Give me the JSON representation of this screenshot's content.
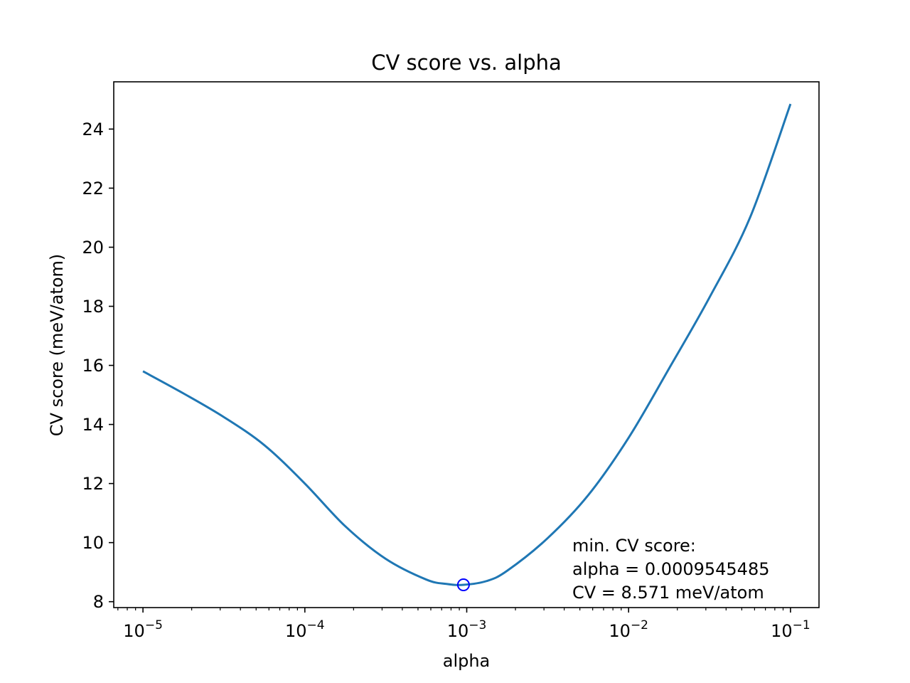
{
  "chart_data": {
    "type": "line",
    "title": "CV score vs. alpha",
    "xlabel": "alpha",
    "ylabel": "CV score (meV/atom)",
    "xscale": "log",
    "xlim": [
      6.6e-06,
      0.15
    ],
    "ylim": [
      7.8,
      25.6
    ],
    "x_ticks": [
      {
        "value": 1e-05,
        "base": "10",
        "exp": "−5"
      },
      {
        "value": 0.0001,
        "base": "10",
        "exp": "−4"
      },
      {
        "value": 0.001,
        "base": "10",
        "exp": "−3"
      },
      {
        "value": 0.01,
        "base": "10",
        "exp": "−2"
      },
      {
        "value": 0.1,
        "base": "10",
        "exp": "−1"
      }
    ],
    "y_ticks": [
      8,
      10,
      12,
      14,
      16,
      18,
      20,
      22,
      24
    ],
    "series": [
      {
        "name": "CV score",
        "color": "#1f77b4",
        "x": [
          1e-05,
          1.78e-05,
          3.16e-05,
          5.62e-05,
          0.0001,
          0.000178,
          0.000316,
          0.000562,
          0.00075,
          0.000955,
          0.00133,
          0.00178,
          0.00316,
          0.00562,
          0.01,
          0.0178,
          0.0316,
          0.0562,
          0.1
        ],
        "y": [
          15.8,
          15.05,
          14.25,
          13.3,
          12.0,
          10.55,
          9.45,
          8.75,
          8.6,
          8.571,
          8.7,
          9.05,
          10.15,
          11.6,
          13.55,
          15.9,
          18.3,
          21.0,
          24.85
        ]
      }
    ],
    "marker": {
      "x": 0.0009545485,
      "y": 8.571,
      "color": "#0000ff"
    },
    "annotation": [
      "min. CV score:",
      "alpha = 0.0009545485",
      "CV = 8.571 meV/atom"
    ]
  }
}
